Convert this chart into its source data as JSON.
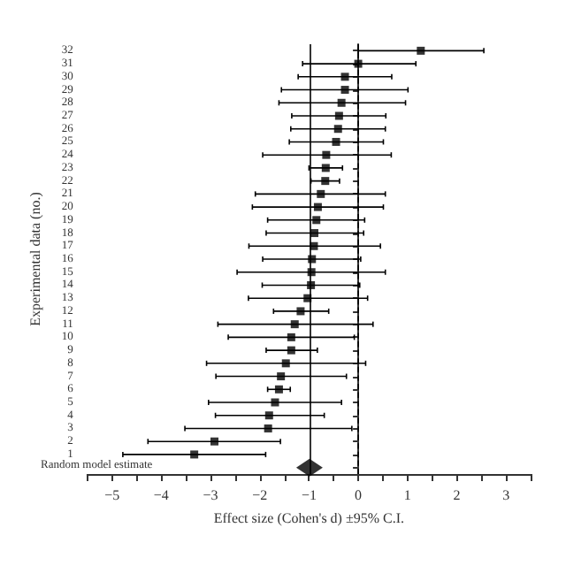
{
  "chart_data": {
    "type": "scatter",
    "orientation": "horizontal",
    "xlabel": "Effect size (Cohen's d) ±95% C.I.",
    "ylabel": "Experimental data (no.)",
    "categories": [
      "32",
      "31",
      "30",
      "29",
      "28",
      "27",
      "26",
      "25",
      "24",
      "23",
      "22",
      "21",
      "20",
      "19",
      "18",
      "17",
      "16",
      "15",
      "14",
      "13",
      "12",
      "11",
      "10",
      "9",
      "8",
      "7",
      "6",
      "5",
      "4",
      "3",
      "2",
      "1",
      "Random model estimate"
    ],
    "series": [
      {
        "color": "#000000",
        "marker": "square",
        "values": [
          1.27,
          0,
          -0.27,
          -0.27,
          -0.34,
          -0.39,
          -0.41,
          -0.45,
          -0.65,
          -0.66,
          -0.67,
          -0.76,
          -0.82,
          -0.85,
          -0.89,
          -0.9,
          -0.94,
          -0.95,
          -0.96,
          -1.03,
          -1.17,
          -1.29,
          -1.36,
          -1.36,
          -1.47,
          -1.57,
          -1.61,
          -1.69,
          -1.81,
          -1.83,
          -2.92,
          -3.33,
          null
        ],
        "errors": [
          [
            0,
            2.55
          ],
          [
            -1.13,
            1.17
          ],
          [
            -1.22,
            0.68
          ],
          [
            -1.56,
            1.01
          ],
          [
            -1.61,
            0.96
          ],
          [
            -1.35,
            0.56
          ],
          [
            -1.37,
            0.55
          ],
          [
            -1.4,
            0.51
          ],
          [
            -1.94,
            0.67
          ],
          [
            -1,
            -0.32
          ],
          [
            -0.96,
            -0.38
          ],
          [
            -2.09,
            0.55
          ],
          [
            -2.15,
            0.51
          ],
          [
            -1.84,
            0.13
          ],
          [
            -1.87,
            0.11
          ],
          [
            -2.22,
            0.45
          ],
          [
            -1.94,
            0.05
          ],
          [
            -2.46,
            0.55
          ],
          [
            -1.95,
            0.03
          ],
          [
            -2.23,
            0.19
          ],
          [
            -1.72,
            -0.6
          ],
          [
            -2.85,
            0.3
          ],
          [
            -2.64,
            -0.08
          ],
          [
            -1.87,
            -0.83
          ],
          [
            -3.08,
            0.15
          ],
          [
            -2.89,
            -0.24
          ],
          [
            -1.84,
            -1.38
          ],
          [
            -3.04,
            -0.34
          ],
          [
            -2.9,
            -0.69
          ],
          [
            -3.52,
            -0.13
          ],
          [
            -4.27,
            -1.58
          ],
          [
            -4.78,
            -1.88
          ],
          null
        ]
      },
      {
        "color": "#000000",
        "marker": "diamond",
        "values": [
          null,
          null,
          null,
          null,
          null,
          null,
          null,
          null,
          null,
          null,
          null,
          null,
          null,
          null,
          null,
          null,
          null,
          null,
          null,
          null,
          null,
          null,
          null,
          null,
          null,
          null,
          null,
          null,
          null,
          null,
          null,
          null,
          -0.99
        ]
      }
    ],
    "xlim": [
      -5.5,
      3.5
    ],
    "xticks": [
      {
        "value": -5.5,
        "label": null
      },
      -5,
      {
        "value": -4.5,
        "label": null
      },
      -4,
      {
        "value": -3.5,
        "label": null
      },
      -3,
      {
        "value": -2.5,
        "label": null
      },
      -2,
      {
        "value": -1.5,
        "label": null
      },
      -1,
      {
        "value": -0.5,
        "label": null
      },
      0,
      {
        "value": 0.5,
        "label": null
      },
      1,
      {
        "value": 1.5,
        "label": null
      },
      2,
      {
        "value": 2.5,
        "label": null
      },
      3,
      {
        "value": 3.5,
        "label": null
      }
    ],
    "ref_lines": [
      {
        "axis": "x",
        "value": -0.99,
        "color": "#000000",
        "line_style": "solid"
      },
      {
        "axis": "x",
        "value": 0,
        "color": "#000000",
        "line_style": "dashed"
      }
    ],
    "grid": false
  }
}
